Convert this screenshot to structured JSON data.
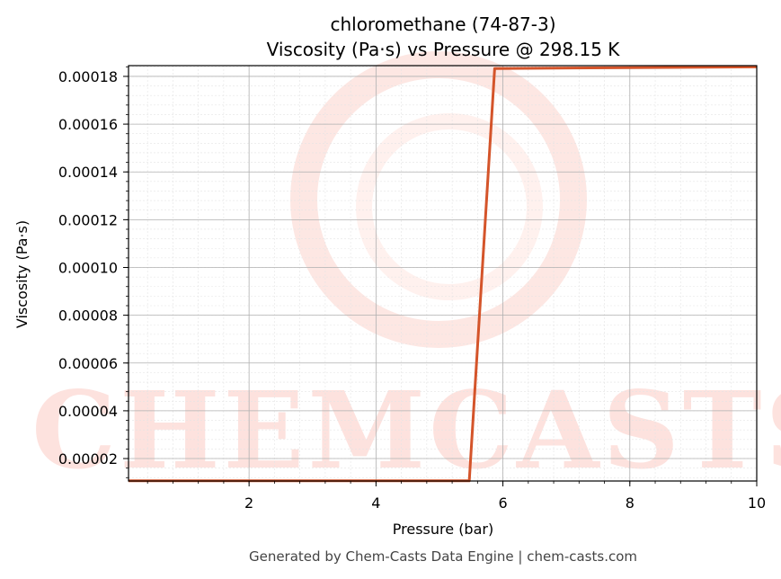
{
  "chart_data": {
    "type": "line",
    "title": "chloromethane (74-87-3)",
    "subtitle": "Viscosity (Pa·s) vs Pressure @ 298.15 K",
    "xlabel": "Pressure (bar)",
    "ylabel": "Viscosity (Pa·s)",
    "xlim": [
      0.1,
      10
    ],
    "ylim": [
      1.06e-05,
      0.0001845
    ],
    "x_ticks": [
      2,
      4,
      6,
      8,
      10
    ],
    "x_tick_labels": [
      "2",
      "4",
      "6",
      "8",
      "10"
    ],
    "y_ticks": [
      2e-05,
      4e-05,
      6e-05,
      8e-05,
      0.0001,
      0.00012,
      0.00014,
      0.00016,
      0.00018
    ],
    "y_tick_labels": [
      "0.00002",
      "0.00004",
      "0.00006",
      "0.00008",
      "0.00010",
      "0.00012",
      "0.00014",
      "0.00016",
      "0.00018"
    ],
    "grid": true,
    "minor_grid": true,
    "series": [
      {
        "color": "#d4542a",
        "x": [
          0.1,
          5.47,
          5.87,
          10
        ],
        "y": [
          1.07e-05,
          1.07e-05,
          0.0001833,
          0.000184
        ]
      }
    ]
  },
  "watermark": {
    "text": "CHEMCASTS",
    "color": "#fde2de"
  },
  "footer": "Generated by Chem-Casts Data Engine | chem-casts.com"
}
